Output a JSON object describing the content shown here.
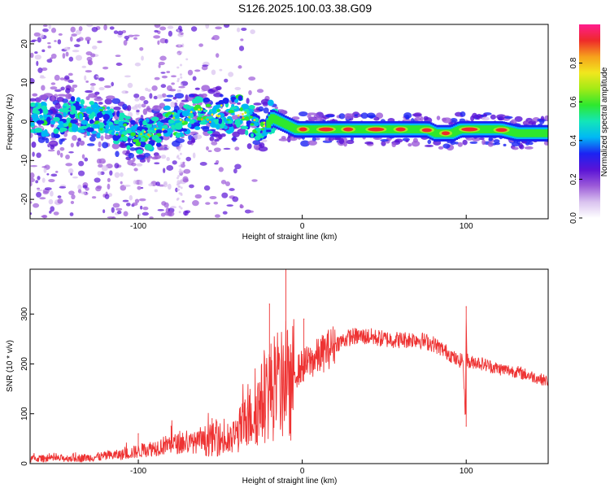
{
  "title": "S126.2025.100.03.38.G09",
  "colors": {
    "snr_line": "#ee3333",
    "colormap": [
      "#ffffff",
      "#d9c2ef",
      "#9b59d8",
      "#5a13d6",
      "#1c23f2",
      "#00b8f5",
      "#13e6b8",
      "#2ee82e",
      "#a2ea16",
      "#f1e71e",
      "#f6a11c",
      "#ee2a2a",
      "#ff1c8e"
    ]
  },
  "chart_data": [
    {
      "type": "heatmap",
      "xlabel": "Height of straight line (km)",
      "ylabel": "Frequency (Hz)",
      "xlim": [
        -166,
        150
      ],
      "ylim": [
        -25,
        25
      ],
      "x_ticks": [
        -100,
        0,
        100
      ],
      "y_ticks": [
        20,
        10,
        0,
        -10,
        -20
      ],
      "colorbar": {
        "label": "Normalized spectral amplitude",
        "range": [
          0,
          1
        ],
        "ticks": [
          "0.0",
          "0.2",
          "0.4",
          "0.6",
          "0.8"
        ]
      },
      "ridge": {
        "x": [
          -166,
          -150,
          -140,
          -130,
          -120,
          -110,
          -100,
          -90,
          -85,
          -80,
          -75,
          -70,
          -65,
          -60,
          -55,
          -50,
          -45,
          -40,
          -35,
          -30,
          -25,
          -20,
          -15,
          -10,
          -5,
          0,
          5,
          10,
          20,
          30,
          40,
          50,
          60,
          70,
          75,
          80,
          85,
          90,
          95,
          100,
          110,
          120,
          130,
          140,
          150
        ],
        "y": [
          1,
          0,
          2,
          1,
          0,
          -2,
          -4,
          -3,
          -1,
          2,
          0,
          1,
          2,
          2,
          1,
          3,
          1,
          3,
          1,
          0,
          -3,
          1,
          0,
          -1,
          -2,
          -2,
          -2,
          -2,
          -2,
          -2,
          -2,
          -2,
          -2,
          -2,
          -2,
          -3,
          -3,
          -3,
          -2,
          -2,
          -2,
          -2,
          -3,
          -3,
          -3
        ]
      },
      "grid": false
    },
    {
      "type": "line",
      "xlabel": "Height of straight line (km)",
      "ylabel": "SNR (10 * v/v)",
      "xlim": [
        -166,
        150
      ],
      "ylim": [
        0,
        390
      ],
      "x_ticks": [
        -100,
        0,
        100
      ],
      "y_ticks": [
        0,
        100,
        200,
        300
      ],
      "series": [
        {
          "x": [
            -166,
            -150,
            -130,
            -110,
            -100,
            -90,
            -80,
            -70,
            -60,
            -50,
            -45,
            -40,
            -35,
            -30,
            -25,
            -20,
            -15,
            -12,
            -10,
            -8,
            -5,
            0,
            10,
            20,
            30,
            40,
            50,
            60,
            70,
            80,
            90,
            95,
            98,
            99.5,
            100,
            100.5,
            102,
            105,
            110,
            120,
            130,
            140,
            150
          ],
          "y": [
            10,
            10,
            12,
            18,
            25,
            32,
            40,
            40,
            45,
            50,
            40,
            60,
            80,
            100,
            120,
            150,
            140,
            160,
            200,
            130,
            180,
            195,
            215,
            240,
            255,
            255,
            250,
            248,
            250,
            240,
            220,
            205,
            210,
            90,
            290,
            210,
            200,
            205,
            200,
            190,
            185,
            175,
            165
          ],
          "peaks": [
            {
              "x": -10,
              "y": 390
            },
            {
              "x": -20,
              "y": 320
            },
            {
              "x": 1,
              "y": 290
            },
            {
              "x": 100,
              "y": 315
            },
            {
              "x": 100,
              "y": 75
            },
            {
              "x": -80,
              "y": 75
            },
            {
              "x": -100,
              "y": 60
            },
            {
              "x": -55,
              "y": 90
            }
          ]
        }
      ],
      "grid": false
    }
  ]
}
